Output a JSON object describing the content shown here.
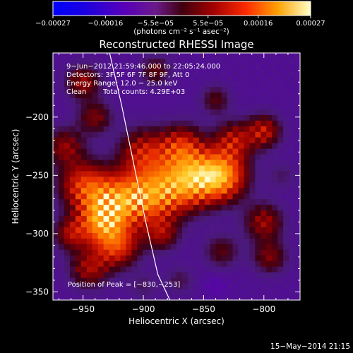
{
  "chart_data": {
    "type": "heatmap",
    "title": "Reconstructed RHESSI Image",
    "xlabel": "Heliocentric X (arcsec)",
    "ylabel": "Heliocentric Y (arcsec)",
    "xlim": [
      -975,
      -770
    ],
    "ylim": [
      -357,
      -145
    ],
    "x_ticks": [
      -950,
      -900,
      -850,
      -800
    ],
    "y_ticks": [
      -350,
      -300,
      -250,
      -200
    ],
    "x_tick_labels": [
      "−950",
      "−900",
      "−850",
      "−800"
    ],
    "y_tick_labels": [
      "−350",
      "−300",
      "−250",
      "−200"
    ],
    "colorbar": {
      "range": [
        -0.00027,
        0.00027
      ],
      "tick_values": [
        -0.00027,
        -0.00016,
        -5.5e-05,
        5.5e-05,
        0.00016,
        0.00027
      ],
      "tick_labels": [
        "−0.00027",
        "−0.00016",
        "−5.5e−05",
        "5.5e−05",
        "0.00016",
        "0.00027"
      ],
      "unit_label": "(photons cm⁻² s⁻¹ asec⁻²)"
    },
    "annotations": {
      "time_range": "9−Jun−2012 21:59:46.000 to 22:05:24.000",
      "detectors": "Detectors: 3F 5F 6F 7F 8F 9F, Att 0",
      "energy": "Energy Range: 12.0 − 25.0 keV",
      "method": "Clean",
      "counts": "Total counts: 4.29E+03",
      "peak": "Position of Peak = [−830,−253]"
    },
    "limb_curve": {
      "x": [
        -928,
        -918,
        -908,
        -898,
        -888,
        -878
      ],
      "y": [
        -145,
        -190,
        -240,
        -290,
        -335,
        -357
      ]
    },
    "blobs": [
      {
        "x": -835,
        "y": -250,
        "r": 20,
        "v": 0.000255
      },
      {
        "x": -858,
        "y": -252,
        "r": 22,
        "v": 0.00021
      },
      {
        "x": -882,
        "y": -262,
        "r": 24,
        "v": 0.00019
      },
      {
        "x": -905,
        "y": -270,
        "r": 22,
        "v": 0.00017
      },
      {
        "x": -928,
        "y": -272,
        "r": 22,
        "v": 0.00018
      },
      {
        "x": -950,
        "y": -258,
        "r": 20,
        "v": 0.00016
      },
      {
        "x": -935,
        "y": -290,
        "r": 18,
        "v": 0.00019
      },
      {
        "x": -922,
        "y": -310,
        "r": 18,
        "v": 0.00018
      },
      {
        "x": -945,
        "y": -330,
        "r": 16,
        "v": 0.00012
      },
      {
        "x": -900,
        "y": -230,
        "r": 20,
        "v": 0.00014
      },
      {
        "x": -868,
        "y": -225,
        "r": 18,
        "v": 0.00015
      },
      {
        "x": -825,
        "y": -220,
        "r": 16,
        "v": 0.00013
      },
      {
        "x": -800,
        "y": -212,
        "r": 14,
        "v": 0.00014
      },
      {
        "x": -965,
        "y": -225,
        "r": 16,
        "v": 0.00011
      },
      {
        "x": -950,
        "y": -170,
        "r": 14,
        "v": 0.00012
      },
      {
        "x": -890,
        "y": -160,
        "r": 12,
        "v": 9e-05
      },
      {
        "x": -840,
        "y": -185,
        "r": 12,
        "v": 8e-05
      },
      {
        "x": -800,
        "y": -290,
        "r": 16,
        "v": 0.00012
      },
      {
        "x": -795,
        "y": -320,
        "r": 14,
        "v": 0.0001
      },
      {
        "x": -835,
        "y": -315,
        "r": 14,
        "v": 8e-05
      },
      {
        "x": -885,
        "y": -300,
        "r": 14,
        "v": 0.00011
      },
      {
        "x": -870,
        "y": -340,
        "r": 12,
        "v": 5e-05
      },
      {
        "x": -960,
        "y": -300,
        "r": 14,
        "v": 0.00012
      },
      {
        "x": -840,
        "y": -345,
        "r": 10,
        "v": -3e-05
      },
      {
        "x": -900,
        "y": -345,
        "r": 12,
        "v": 4e-05
      },
      {
        "x": -785,
        "y": -250,
        "r": 12,
        "v": 4e-05
      },
      {
        "x": -940,
        "y": -200,
        "r": 14,
        "v": 0.0001
      }
    ]
  },
  "footer": {
    "timestamp": "15−May−2014 21:15"
  }
}
